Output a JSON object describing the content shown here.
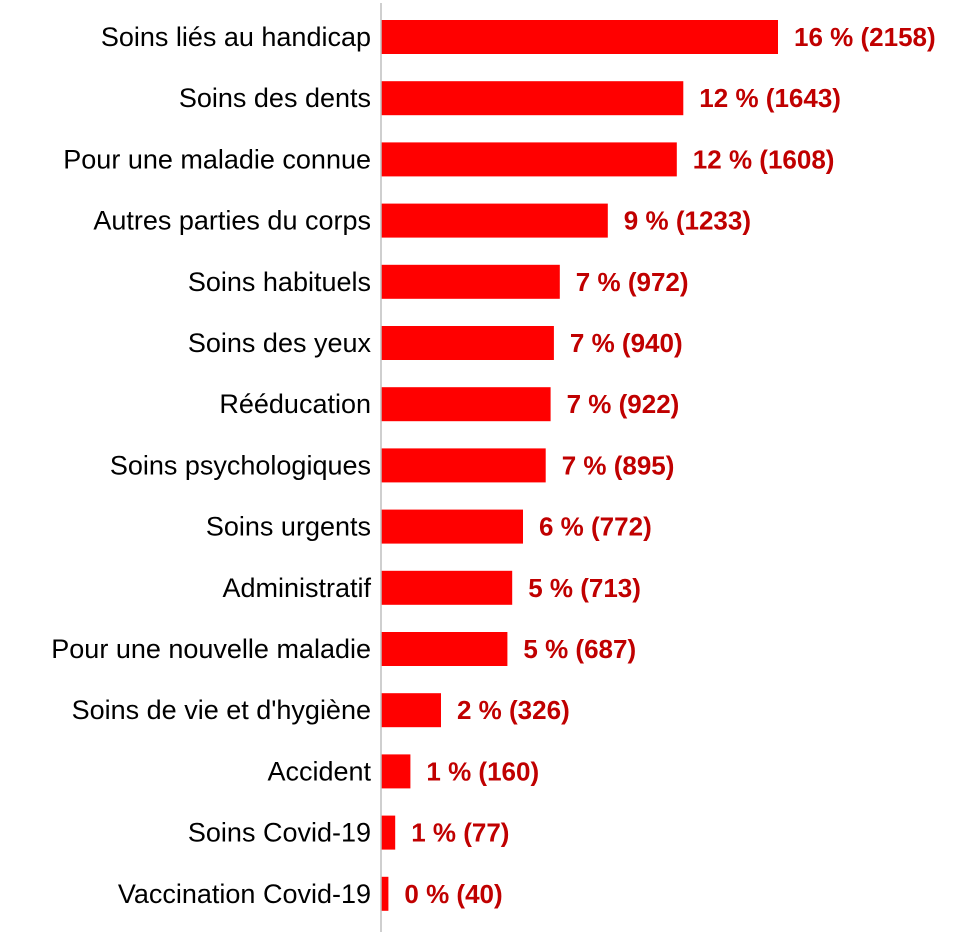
{
  "chart_data": {
    "type": "bar",
    "orientation": "horizontal",
    "title": "",
    "xlabel": "",
    "ylabel": "",
    "categories": [
      "Soins liés au handicap",
      "Soins des dents",
      "Pour une maladie connue",
      "Autres parties du corps",
      "Soins habituels",
      "Soins des yeux",
      "Rééducation",
      "Soins psychologiques",
      "Soins urgents",
      "Administratif",
      "Pour une nouvelle maladie",
      "Soins de vie et d'hygiène",
      "Accident",
      "Soins Covid-19",
      "Vaccination Covid-19"
    ],
    "values": [
      2158,
      1643,
      1608,
      1233,
      972,
      940,
      922,
      895,
      772,
      713,
      687,
      326,
      160,
      77,
      40
    ],
    "data_labels": [
      "16 % (2158)",
      "12 % (1643)",
      "12 % (1608)",
      "9 % (1233)",
      "7 % (972)",
      "7 % (940)",
      "7 % (922)",
      "7 % (895)",
      "6 % (772)",
      "5 % (713)",
      "5 % (687)",
      "2 % (326)",
      "1 % (160)",
      "1 % (77)",
      "0 % (40)"
    ],
    "xlim": [
      0,
      2158
    ],
    "grid": false,
    "legend": "none",
    "colors": {
      "bar": "#ff0000",
      "data_label": "#c00000",
      "axis": "#bfbfbf",
      "category_label": "#000000"
    }
  }
}
